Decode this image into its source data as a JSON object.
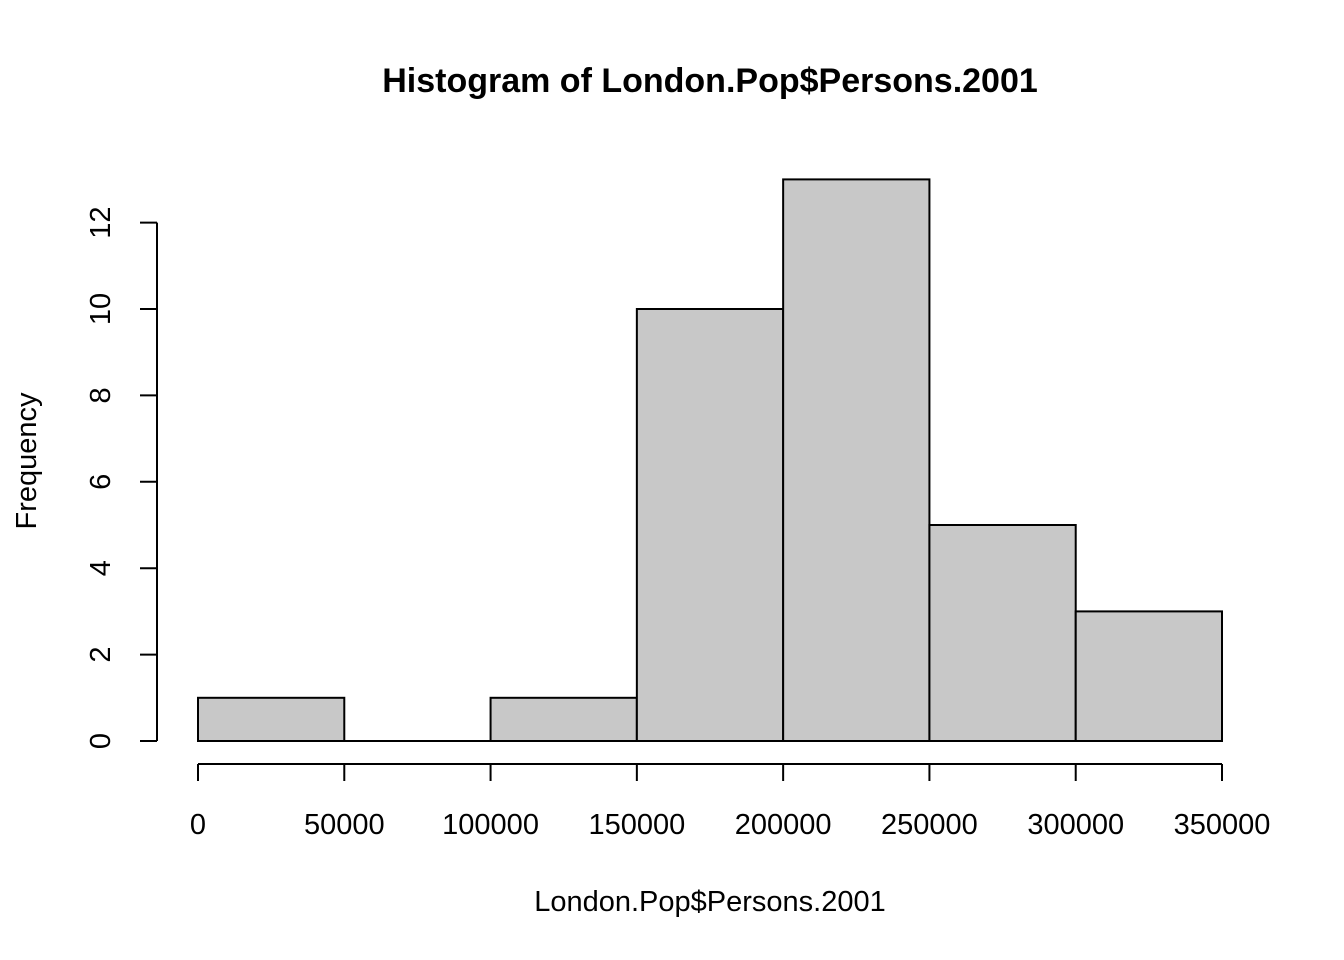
{
  "chart_data": {
    "type": "bar",
    "title": "Histogram of London.Pop$Persons.2001",
    "xlabel": "London.Pop$Persons.2001",
    "ylabel": "Frequency",
    "bins": [
      {
        "from": 0,
        "to": 50000,
        "count": 1
      },
      {
        "from": 50000,
        "to": 100000,
        "count": 0
      },
      {
        "from": 100000,
        "to": 150000,
        "count": 1
      },
      {
        "from": 150000,
        "to": 200000,
        "count": 10
      },
      {
        "from": 200000,
        "to": 250000,
        "count": 13
      },
      {
        "from": 250000,
        "to": 300000,
        "count": 5
      },
      {
        "from": 300000,
        "to": 350000,
        "count": 3
      }
    ],
    "xlim": [
      0,
      350000
    ],
    "ylim": [
      0,
      13
    ],
    "x_ticks": [
      "0",
      "50000",
      "100000",
      "150000",
      "200000",
      "250000",
      "300000",
      "350000"
    ],
    "y_ticks": [
      "0",
      "2",
      "4",
      "6",
      "8",
      "10",
      "12"
    ],
    "bar_color": "#c8c8c8",
    "grid": false,
    "legend": "none"
  }
}
